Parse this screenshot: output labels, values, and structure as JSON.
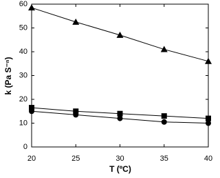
{
  "chart_data": {
    "type": "line",
    "x_label": "T (ºC)",
    "y_label": "k (Pa S⁻ⁿ)",
    "x": [
      20,
      25,
      30,
      35,
      40
    ],
    "series": [
      {
        "marker": "triangle",
        "color": "#000000",
        "values": [
          58.5,
          52.5,
          47,
          41,
          36
        ]
      },
      {
        "marker": "square",
        "color": "#000000",
        "values": [
          16.5,
          15,
          14,
          13,
          12
        ]
      },
      {
        "marker": "circle",
        "color": "#000000",
        "values": [
          15,
          13.5,
          12,
          10.5,
          10
        ]
      }
    ],
    "xlim": [
      20,
      40
    ],
    "xticks": [
      20,
      25,
      30,
      35,
      40
    ],
    "ylim": [
      0,
      60
    ],
    "yticks": [
      0,
      10,
      20,
      30,
      40,
      50,
      60
    ],
    "grid": false
  }
}
